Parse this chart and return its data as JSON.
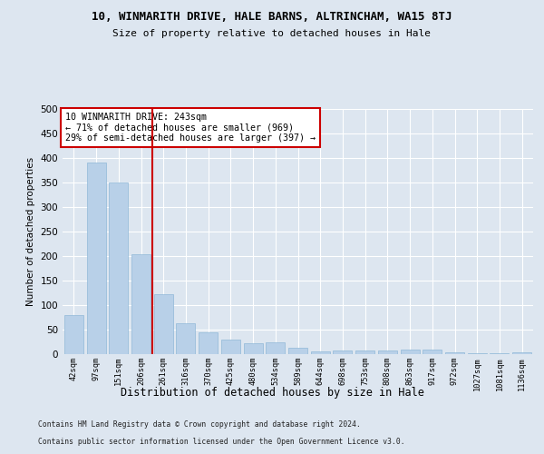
{
  "title1": "10, WINMARITH DRIVE, HALE BARNS, ALTRINCHAM, WA15 8TJ",
  "title2": "Size of property relative to detached houses in Hale",
  "xlabel": "Distribution of detached houses by size in Hale",
  "ylabel": "Number of detached properties",
  "categories": [
    "42sqm",
    "97sqm",
    "151sqm",
    "206sqm",
    "261sqm",
    "316sqm",
    "370sqm",
    "425sqm",
    "480sqm",
    "534sqm",
    "589sqm",
    "644sqm",
    "698sqm",
    "753sqm",
    "808sqm",
    "863sqm",
    "917sqm",
    "972sqm",
    "1027sqm",
    "1081sqm",
    "1136sqm"
  ],
  "values": [
    80,
    390,
    350,
    204,
    123,
    63,
    45,
    30,
    22,
    24,
    13,
    6,
    8,
    7,
    7,
    10,
    10,
    3,
    2,
    2,
    3
  ],
  "bar_color": "#b8d0e8",
  "bar_edge_color": "#90b8d8",
  "vline_x": 3.5,
  "vline_color": "#cc0000",
  "annotation_text": "10 WINMARITH DRIVE: 243sqm\n← 71% of detached houses are smaller (969)\n29% of semi-detached houses are larger (397) →",
  "annotation_box_facecolor": "#ffffff",
  "annotation_box_edgecolor": "#cc0000",
  "footer1": "Contains HM Land Registry data © Crown copyright and database right 2024.",
  "footer2": "Contains public sector information licensed under the Open Government Licence v3.0.",
  "bg_color": "#dde6f0",
  "plot_bg_color": "#dde6f0",
  "grid_color": "#ffffff",
  "ylim": [
    0,
    500
  ],
  "yticks": [
    0,
    50,
    100,
    150,
    200,
    250,
    300,
    350,
    400,
    450,
    500
  ]
}
